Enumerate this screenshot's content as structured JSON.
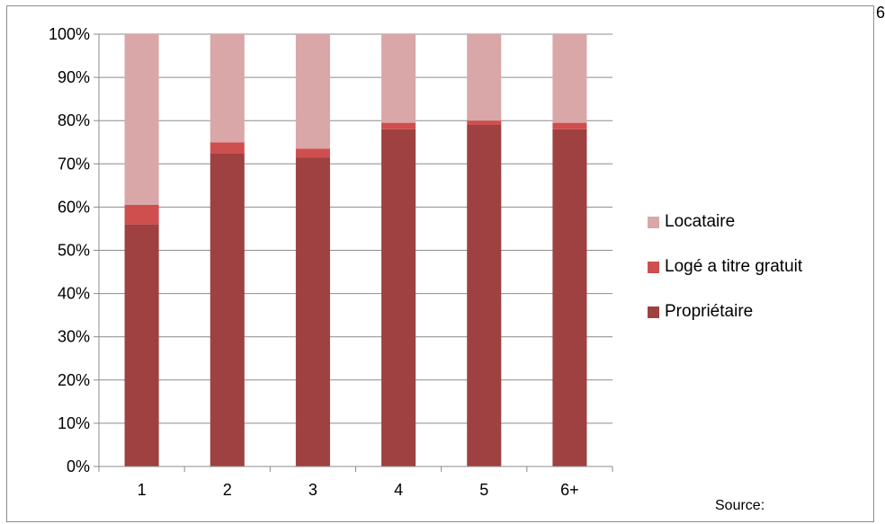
{
  "page_number": "6",
  "source_label": "Source:",
  "colors": {
    "Locataire": "#d9a7a8",
    "Logé a titre gratuit": "#cf4f4e",
    "Propriétaire": "#9e4140",
    "axis": "#8c8c8c"
  },
  "legend": [
    "Locataire",
    "Logé a titre gratuit",
    "Propriétaire"
  ],
  "chart_data": {
    "type": "bar",
    "stacked": true,
    "categories": [
      "1",
      "2",
      "3",
      "4",
      "5",
      "6+"
    ],
    "series": [
      {
        "name": "Propriétaire",
        "values": [
          56,
          72.5,
          71.5,
          78,
          79,
          78
        ]
      },
      {
        "name": "Logé a titre gratuit",
        "values": [
          4.5,
          2.5,
          2,
          1.5,
          1,
          1.5
        ]
      },
      {
        "name": "Locataire",
        "values": [
          39.5,
          25,
          26.5,
          20.5,
          20,
          20.5
        ]
      }
    ],
    "ylim": [
      0,
      100
    ],
    "yticks": [
      "0%",
      "10%",
      "20%",
      "30%",
      "40%",
      "50%",
      "60%",
      "70%",
      "80%",
      "90%",
      "100%"
    ],
    "grid": true,
    "legend_position": "right"
  }
}
